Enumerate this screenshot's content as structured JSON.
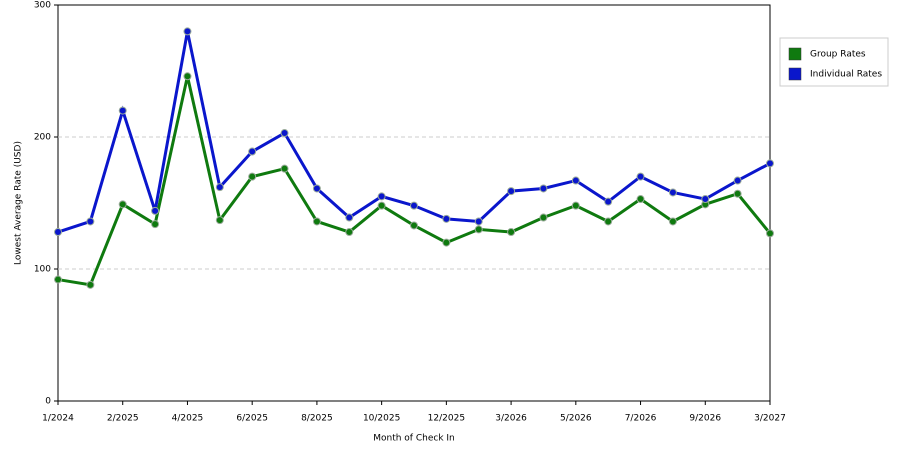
{
  "chart_data": {
    "type": "line",
    "x_label": "Month of Check In",
    "y_label": "Lowest Average Rate (USD)",
    "categories": [
      "1/2024",
      null,
      "2/2025",
      null,
      "4/2025",
      null,
      "6/2025",
      null,
      "8/2025",
      null,
      "10/2025",
      null,
      "12/2025",
      null,
      "3/2026",
      null,
      "5/2026",
      null,
      "7/2026",
      null,
      "9/2026",
      null,
      "3/2027"
    ],
    "series": [
      {
        "name": "Group Rates",
        "color": "#0f7a0f",
        "values": [
          92,
          88,
          149,
          134,
          246,
          137,
          170,
          176,
          136,
          128,
          148,
          133,
          120,
          130,
          128,
          139,
          148,
          136,
          153,
          136,
          149,
          157,
          127
        ]
      },
      {
        "name": "Individual Rates",
        "color": "#0a16cc",
        "values": [
          128,
          136,
          220,
          144,
          280,
          162,
          189,
          203,
          161,
          139,
          155,
          148,
          138,
          136,
          159,
          161,
          167,
          151,
          170,
          158,
          153,
          167,
          180
        ]
      }
    ],
    "ylim": [
      0,
      300
    ],
    "yticks": [
      0,
      100,
      200,
      300
    ],
    "grid": true,
    "legend": "right"
  }
}
